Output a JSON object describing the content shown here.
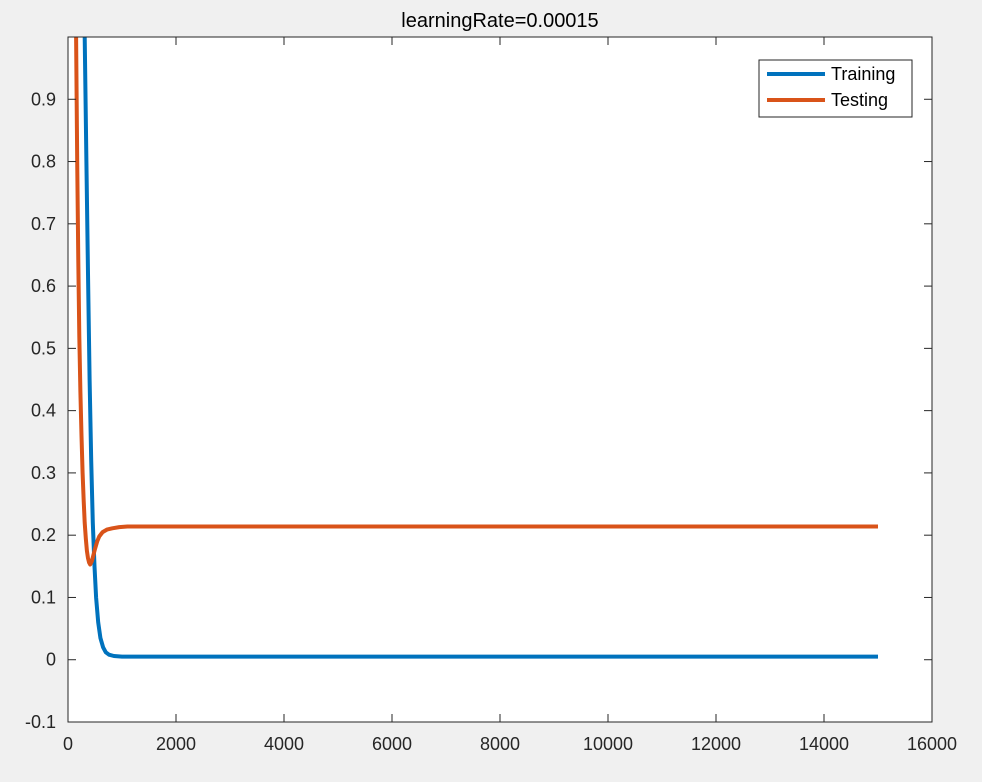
{
  "chart_data": {
    "type": "line",
    "title": "learningRate=0.00015",
    "xlabel": "",
    "ylabel": "",
    "xlim": [
      0,
      16000
    ],
    "ylim": [
      -0.1,
      1.0
    ],
    "xticks": [
      0,
      2000,
      4000,
      6000,
      8000,
      10000,
      12000,
      14000,
      16000
    ],
    "yticks": [
      -0.1,
      0,
      0.1,
      0.2,
      0.3,
      0.4,
      0.5,
      0.6,
      0.7,
      0.8,
      0.9
    ],
    "xtick_labels": [
      "0",
      "2000",
      "4000",
      "6000",
      "8000",
      "10000",
      "12000",
      "14000",
      "16000"
    ],
    "ytick_labels": [
      "-0.1",
      "0",
      "0.1",
      "0.2",
      "0.3",
      "0.4",
      "0.5",
      "0.6",
      "0.7",
      "0.8",
      "0.9"
    ],
    "grid": false,
    "legend_position": "top-right",
    "series": [
      {
        "name": "Training",
        "color": "#0072bd",
        "x": [
          310,
          340,
          370,
          400,
          430,
          460,
          490,
          520,
          560,
          600,
          650,
          700,
          760,
          850,
          1000,
          1500,
          3000,
          6000,
          9000,
          12000,
          15000
        ],
        "y": [
          1.0,
          0.8,
          0.62,
          0.45,
          0.32,
          0.22,
          0.15,
          0.1,
          0.06,
          0.035,
          0.02,
          0.012,
          0.008,
          0.006,
          0.005,
          0.005,
          0.005,
          0.005,
          0.005,
          0.005,
          0.005
        ]
      },
      {
        "name": "Testing",
        "color": "#d95319",
        "x": [
          150,
          170,
          190,
          210,
          230,
          250,
          270,
          290,
          310,
          330,
          350,
          370,
          390,
          410,
          440,
          470,
          500,
          540,
          580,
          640,
          720,
          820,
          950,
          1100,
          1500,
          3000,
          6000,
          9000,
          12000,
          15000
        ],
        "y": [
          1.0,
          0.8,
          0.64,
          0.52,
          0.43,
          0.36,
          0.3,
          0.255,
          0.22,
          0.195,
          0.175,
          0.163,
          0.156,
          0.153,
          0.158,
          0.168,
          0.178,
          0.19,
          0.198,
          0.205,
          0.209,
          0.211,
          0.213,
          0.214,
          0.214,
          0.214,
          0.214,
          0.214,
          0.214,
          0.214
        ]
      }
    ]
  }
}
